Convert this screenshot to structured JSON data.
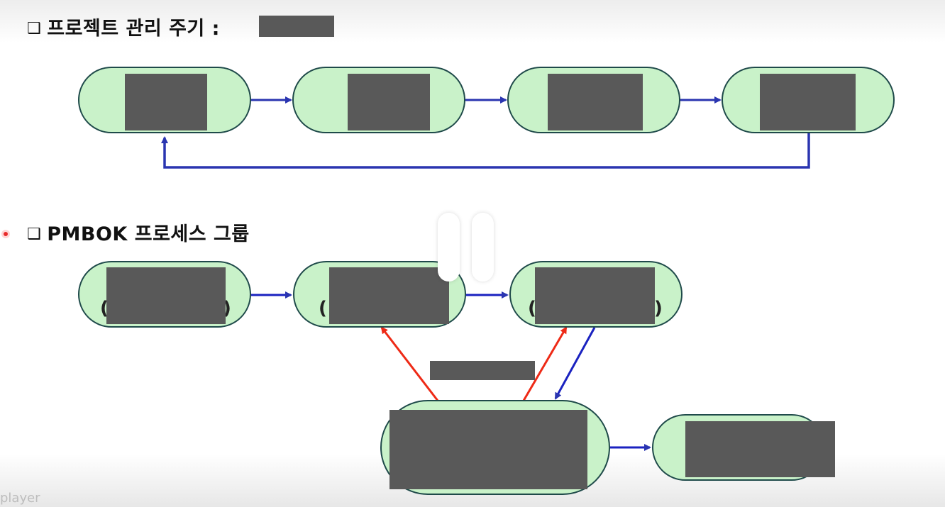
{
  "sections": {
    "lifecycle": {
      "heading": "프로젝트 관리 주기 :",
      "marker": "❑"
    },
    "process_groups": {
      "heading": "PMBOK 프로세스 그룹",
      "marker": "❑",
      "paren_open": "(",
      "paren_close": ")"
    }
  },
  "colors": {
    "node_fill": "#c9f2c9",
    "node_border": "#1f4a4a",
    "flow_arrow": "#2a35b0",
    "feedback_arrow": "#ee2a16",
    "redaction": "#595959"
  },
  "overlay": {
    "control": "pause-icon",
    "watermark": "player"
  }
}
